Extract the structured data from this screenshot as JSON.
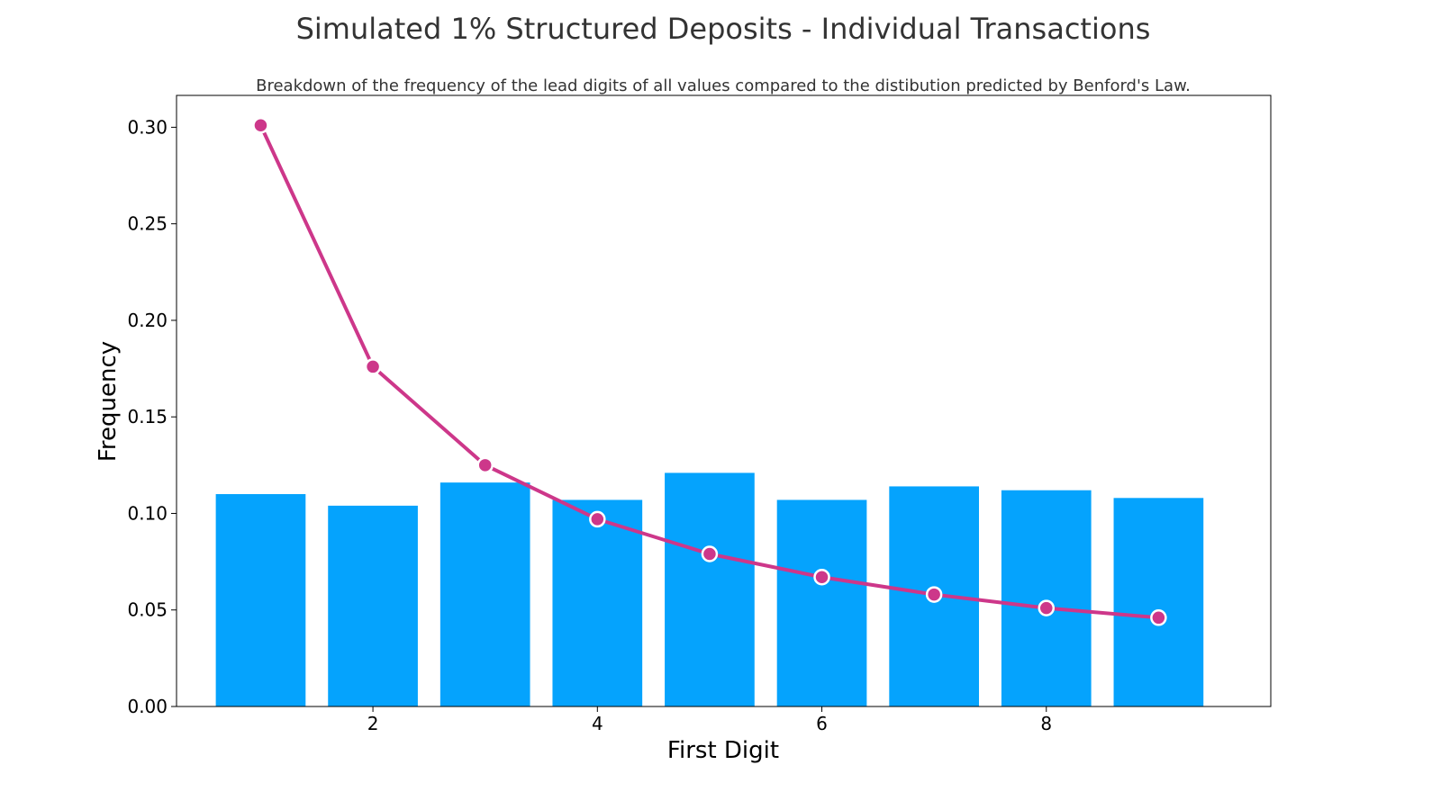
{
  "chart_data": {
    "type": "bar",
    "title": "Simulated 1% Structured Deposits - Individual Transactions",
    "subtitle": "Breakdown of the frequency of the lead digits of all values compared to the distibution predicted by Benford's Law.",
    "xlabel": "First Digit",
    "ylabel": "Frequency",
    "x": [
      1,
      2,
      3,
      4,
      5,
      6,
      7,
      8,
      9
    ],
    "xlim": [
      0.25,
      10.0
    ],
    "ylim": [
      0,
      0.3165
    ],
    "xticks": [
      2,
      4,
      6,
      8
    ],
    "xtick_labels": [
      "2",
      "4",
      "6",
      "8"
    ],
    "yticks": [
      0.0,
      0.05,
      0.1,
      0.15,
      0.2,
      0.25,
      0.3
    ],
    "ytick_labels": [
      "0.00",
      "0.05",
      "0.10",
      "0.15",
      "0.20",
      "0.25",
      "0.30"
    ],
    "grid": false,
    "series": [
      {
        "type": "bar",
        "values": [
          0.11,
          0.104,
          0.116,
          0.107,
          0.121,
          0.107,
          0.114,
          0.112,
          0.108
        ],
        "color": "#05a3fd"
      },
      {
        "type": "line",
        "values": [
          0.301,
          0.176,
          0.125,
          0.097,
          0.079,
          0.067,
          0.058,
          0.051,
          0.046
        ],
        "color": "#cd378a"
      }
    ]
  }
}
